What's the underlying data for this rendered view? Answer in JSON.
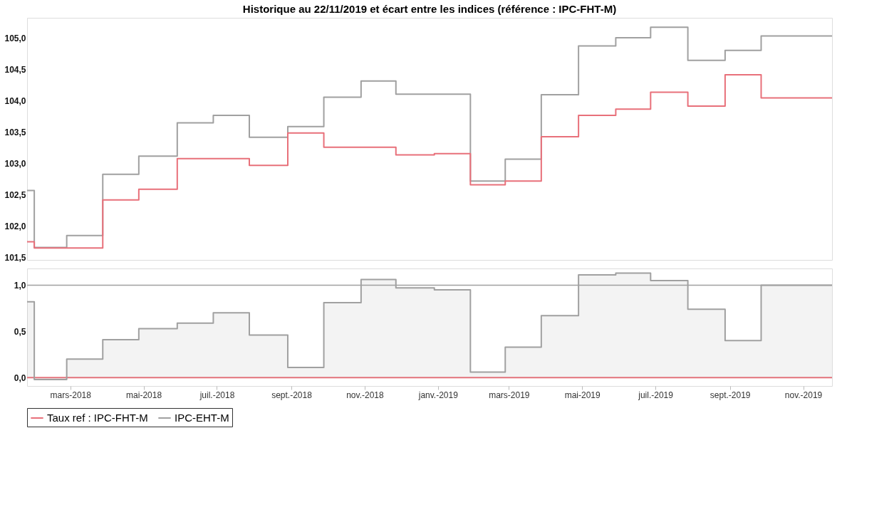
{
  "chart_data": [
    {
      "type": "step",
      "title": "Historique au 22/11/2019 et écart entre les indices (référence : IPC-FHT-M)",
      "xlim": [
        "2018-01-24",
        "2019-11-25"
      ],
      "ylim": [
        101.46,
        105.33
      ],
      "yticks": [
        {
          "value": 101.5,
          "label": "101,5"
        },
        {
          "value": 102.0,
          "label": "102,0"
        },
        {
          "value": 102.5,
          "label": "102,5"
        },
        {
          "value": 103.0,
          "label": "103,0"
        },
        {
          "value": 103.5,
          "label": "103,5"
        },
        {
          "value": 104.0,
          "label": "104,0"
        },
        {
          "value": 104.5,
          "label": "104,5"
        },
        {
          "value": 105.0,
          "label": "105,0"
        }
      ],
      "tick_labels": "y",
      "grid": false,
      "legend": false,
      "series": [
        {
          "color": "#a0a0a0",
          "x": [
            "2018-01-24",
            "2018-01-30",
            "2018-02-26",
            "2018-03-28",
            "2018-04-27",
            "2018-05-29",
            "2018-06-28",
            "2018-07-28",
            "2018-08-29",
            "2018-09-28",
            "2018-10-29",
            "2018-11-27",
            "2019-01-28",
            "2019-02-26",
            "2019-03-28",
            "2019-04-28",
            "2019-05-29",
            "2019-06-27",
            "2019-07-28",
            "2019-08-28",
            "2019-09-27",
            "2019-11-25"
          ],
          "values": [
            102.57,
            101.66,
            101.85,
            102.83,
            103.12,
            103.65,
            103.77,
            103.42,
            103.59,
            104.06,
            104.32,
            104.11,
            102.72,
            103.07,
            104.1,
            104.88,
            105.01,
            105.18,
            104.65,
            104.81,
            105.04,
            105.04
          ]
        },
        {
          "color": "#e8707a",
          "x": [
            "2018-01-24",
            "2018-01-30",
            "2018-03-28",
            "2018-04-27",
            "2018-05-29",
            "2018-07-28",
            "2018-08-29",
            "2018-09-28",
            "2018-11-27",
            "2018-12-29",
            "2019-01-28",
            "2019-02-26",
            "2019-03-28",
            "2019-04-28",
            "2019-05-29",
            "2019-06-27",
            "2019-07-28",
            "2019-08-28",
            "2019-09-27",
            "2019-11-25"
          ],
          "values": [
            101.75,
            101.65,
            102.42,
            102.59,
            103.08,
            102.97,
            103.49,
            103.26,
            103.14,
            103.16,
            102.66,
            102.72,
            103.43,
            103.77,
            103.87,
            104.14,
            103.92,
            104.42,
            104.05,
            104.05
          ]
        }
      ]
    },
    {
      "type": "step",
      "xlim": [
        "2018-01-24",
        "2019-11-25"
      ],
      "ylim": [
        -0.09,
        1.18
      ],
      "yticks": [
        {
          "value": 0.0,
          "label": "0,0"
        },
        {
          "value": 0.5,
          "label": "0,5"
        },
        {
          "value": 1.0,
          "label": "1,0"
        }
      ],
      "xticks": [
        {
          "value": "2018-03-01",
          "label": "mars-2018"
        },
        {
          "value": "2018-05-01",
          "label": "mai-2018"
        },
        {
          "value": "2018-07-01",
          "label": "juil.-2018"
        },
        {
          "value": "2018-09-01",
          "label": "sept.-2018"
        },
        {
          "value": "2018-11-01",
          "label": "nov.-2018"
        },
        {
          "value": "2019-01-01",
          "label": "janv.-2019"
        },
        {
          "value": "2019-03-01",
          "label": "mars-2019"
        },
        {
          "value": "2019-05-01",
          "label": "mai-2019"
        },
        {
          "value": "2019-07-01",
          "label": "juil.-2019"
        },
        {
          "value": "2019-09-01",
          "label": "sept.-2019"
        },
        {
          "value": "2019-11-01",
          "label": "nov.-2019"
        }
      ],
      "grid": false,
      "legend": "bottom",
      "ref_lines": [
        {
          "axis": "y",
          "value": 1.0,
          "color": "#a0a0a0"
        }
      ],
      "series": [
        {
          "name": "Taux ref : IPC-FHT-M",
          "color": "#e8707a",
          "x": [
            "2018-01-24",
            "2019-11-25"
          ],
          "values": [
            0.0,
            0.0
          ]
        },
        {
          "name": "IPC-EHT-M",
          "type": "area",
          "color": "#a0a0a0",
          "x": [
            "2018-01-24",
            "2018-01-30",
            "2018-02-26",
            "2018-03-28",
            "2018-04-27",
            "2018-05-29",
            "2018-06-28",
            "2018-07-28",
            "2018-08-29",
            "2018-09-28",
            "2018-10-29",
            "2018-11-27",
            "2018-12-29",
            "2019-01-28",
            "2019-02-26",
            "2019-03-28",
            "2019-04-28",
            "2019-05-29",
            "2019-06-27",
            "2019-07-28",
            "2019-08-28",
            "2019-09-27",
            "2019-11-25"
          ],
          "values": [
            0.82,
            -0.02,
            0.2,
            0.41,
            0.53,
            0.59,
            0.7,
            0.46,
            0.11,
            0.81,
            1.06,
            0.97,
            0.95,
            0.06,
            0.33,
            0.67,
            1.11,
            1.13,
            1.05,
            0.74,
            0.4,
            1.0,
            1.0
          ]
        }
      ]
    }
  ]
}
